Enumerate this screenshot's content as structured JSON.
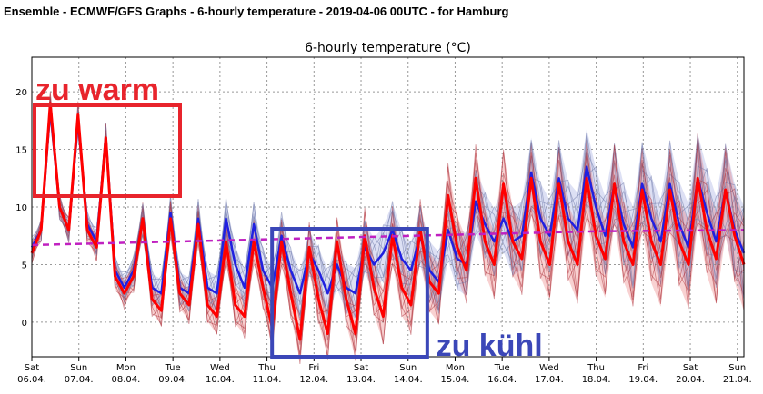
{
  "header": {
    "title": "Ensemble - ECMWF/GFS Graphs - 6-hourly temperature - 2019-04-06 00UTC - for Hamburg"
  },
  "chart_data": {
    "type": "line",
    "title": "6-hourly temperature (°C)",
    "xlabel": "",
    "ylabel": "",
    "ylim": [
      -3,
      23
    ],
    "grid": true,
    "yticks": [
      0,
      5,
      10,
      15,
      20
    ],
    "day_labels": [
      {
        "day": "Sat",
        "date": "06.04."
      },
      {
        "day": "Sun",
        "date": "07.04."
      },
      {
        "day": "Mon",
        "date": "08.04."
      },
      {
        "day": "Tue",
        "date": "09.04."
      },
      {
        "day": "Wed",
        "date": "10.04."
      },
      {
        "day": "Thu",
        "date": "11.04."
      },
      {
        "day": "Fri",
        "date": "12.04."
      },
      {
        "day": "Sat",
        "date": "13.04."
      },
      {
        "day": "Sun",
        "date": "14.04."
      },
      {
        "day": "Mon",
        "date": "15.04."
      },
      {
        "day": "Tue",
        "date": "16.04."
      },
      {
        "day": "Wed",
        "date": "17.04."
      },
      {
        "day": "Thu",
        "date": "18.04."
      },
      {
        "day": "Fri",
        "date": "19.04."
      },
      {
        "day": "Sat",
        "date": "20.04."
      },
      {
        "day": "Sun",
        "date": "21.04."
      }
    ],
    "series": [
      {
        "color": "#2020e0",
        "values": [
          6.5,
          8.0,
          18.5,
          10.0,
          8.0,
          17.5,
          8.5,
          7.0,
          16.0,
          4.5,
          3.0,
          4.5,
          9.0,
          3.0,
          2.5,
          9.5,
          3.0,
          2.5,
          9.0,
          3.0,
          2.5,
          9.0,
          5.0,
          3.0,
          8.5,
          4.5,
          3.0,
          7.5,
          4.5,
          2.5,
          6.0,
          4.5,
          2.5,
          5.0,
          3.0,
          2.5,
          6.5,
          5.0,
          6.0,
          8.0,
          5.5,
          4.5,
          7.5,
          4.5,
          3.5,
          8.0,
          5.5,
          5.0,
          10.5,
          8.5,
          7.0,
          9.0,
          7.0,
          7.5,
          13.0,
          9.0,
          7.5,
          12.5,
          9.0,
          8.0,
          13.5,
          10.0,
          7.5,
          12.0,
          8.5,
          6.5,
          12.0,
          9.0,
          7.0,
          12.0,
          8.5,
          6.5,
          12.5,
          9.5,
          7.0,
          11.5,
          8.0,
          6.0
        ]
      },
      {
        "color": "#ff0000",
        "values": [
          6.0,
          8.0,
          19.0,
          10.0,
          8.0,
          18.0,
          8.0,
          6.5,
          16.0,
          4.0,
          2.5,
          4.0,
          9.0,
          2.0,
          1.0,
          9.0,
          2.5,
          1.5,
          8.5,
          1.5,
          0.5,
          7.0,
          1.5,
          0.5,
          7.0,
          3.0,
          -0.5,
          7.0,
          2.5,
          -1.5,
          6.5,
          2.0,
          -1.0,
          7.0,
          2.0,
          -1.0,
          7.5,
          3.0,
          0.5,
          7.5,
          3.0,
          1.5,
          8.0,
          3.5,
          2.5,
          11.0,
          6.5,
          4.5,
          12.5,
          7.0,
          5.0,
          12.0,
          7.0,
          5.5,
          12.5,
          7.0,
          5.0,
          12.0,
          7.0,
          5.0,
          12.5,
          7.5,
          5.5,
          12.0,
          7.0,
          5.0,
          11.5,
          7.0,
          5.0,
          11.5,
          7.0,
          5.0,
          12.5,
          8.0,
          5.5,
          11.5,
          7.5,
          5.0
        ]
      },
      {
        "color": "#c020c0",
        "dashed": true,
        "values": [
          6.7,
          7.0,
          7.3,
          7.6,
          7.9,
          8.0
        ]
      }
    ],
    "annotations": [
      {
        "text": "zu warm",
        "color": "#e8242c"
      },
      {
        "text": "zu kühl",
        "color": "#3b47b8"
      }
    ]
  }
}
